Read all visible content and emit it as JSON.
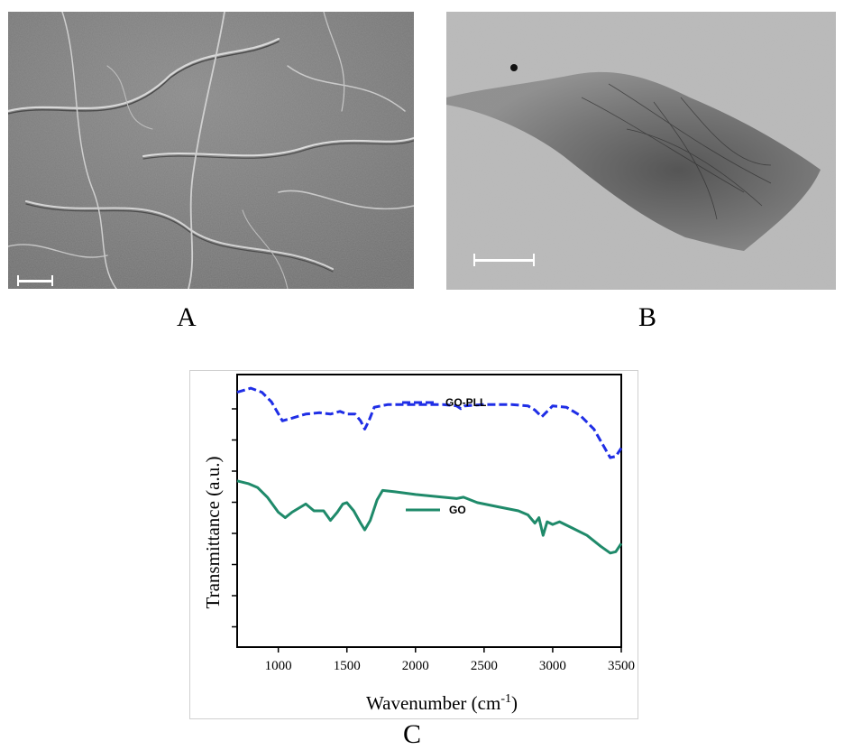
{
  "panels": {
    "a": {
      "letter": "A"
    },
    "b": {
      "letter": "B"
    },
    "c": {
      "letter": "C"
    }
  },
  "colors": {
    "go_pll": "#1f2ee6",
    "go": "#1f8a6a"
  },
  "chart_data": {
    "type": "line",
    "title": "",
    "xlabel_base": "Wavenumber (cm",
    "xlabel_sup": "-1",
    "xlabel_close": ")",
    "ylabel": "Transmittance (a.u.)",
    "xlim": [
      700,
      3500
    ],
    "ylim": [
      0,
      10
    ],
    "x_ticks": [
      1000,
      1500,
      2000,
      2500,
      3000,
      3500
    ],
    "y_tick_count": 8,
    "legend_placement": "inside, near each series",
    "series": [
      {
        "name": "GO-PLL",
        "style": "dashed",
        "points": [
          [
            700,
            9.35
          ],
          [
            800,
            9.5
          ],
          [
            880,
            9.35
          ],
          [
            950,
            9.0
          ],
          [
            1030,
            8.3
          ],
          [
            1100,
            8.4
          ],
          [
            1200,
            8.55
          ],
          [
            1300,
            8.6
          ],
          [
            1380,
            8.55
          ],
          [
            1450,
            8.65
          ],
          [
            1500,
            8.55
          ],
          [
            1560,
            8.55
          ],
          [
            1600,
            8.3
          ],
          [
            1630,
            8.0
          ],
          [
            1660,
            8.3
          ],
          [
            1700,
            8.8
          ],
          [
            1800,
            8.9
          ],
          [
            2000,
            8.9
          ],
          [
            2200,
            8.9
          ],
          [
            2300,
            8.85
          ],
          [
            2330,
            8.75
          ],
          [
            2360,
            8.85
          ],
          [
            2500,
            8.9
          ],
          [
            2700,
            8.9
          ],
          [
            2820,
            8.85
          ],
          [
            2870,
            8.7
          ],
          [
            2920,
            8.45
          ],
          [
            2950,
            8.6
          ],
          [
            3000,
            8.85
          ],
          [
            3100,
            8.8
          ],
          [
            3200,
            8.5
          ],
          [
            3300,
            8.0
          ],
          [
            3380,
            7.3
          ],
          [
            3420,
            6.95
          ],
          [
            3460,
            7.0
          ],
          [
            3500,
            7.3
          ]
        ]
      },
      {
        "name": "GO",
        "style": "solid",
        "points": [
          [
            700,
            6.1
          ],
          [
            780,
            6.0
          ],
          [
            850,
            5.85
          ],
          [
            920,
            5.5
          ],
          [
            1000,
            4.95
          ],
          [
            1050,
            4.75
          ],
          [
            1100,
            4.95
          ],
          [
            1200,
            5.25
          ],
          [
            1260,
            5.0
          ],
          [
            1330,
            5.0
          ],
          [
            1380,
            4.65
          ],
          [
            1430,
            4.95
          ],
          [
            1470,
            5.25
          ],
          [
            1500,
            5.3
          ],
          [
            1550,
            5.0
          ],
          [
            1600,
            4.55
          ],
          [
            1630,
            4.3
          ],
          [
            1670,
            4.65
          ],
          [
            1720,
            5.4
          ],
          [
            1760,
            5.75
          ],
          [
            1850,
            5.7
          ],
          [
            2000,
            5.6
          ],
          [
            2100,
            5.55
          ],
          [
            2200,
            5.5
          ],
          [
            2300,
            5.45
          ],
          [
            2350,
            5.5
          ],
          [
            2450,
            5.3
          ],
          [
            2600,
            5.15
          ],
          [
            2750,
            5.0
          ],
          [
            2820,
            4.85
          ],
          [
            2870,
            4.55
          ],
          [
            2900,
            4.75
          ],
          [
            2930,
            4.1
          ],
          [
            2960,
            4.6
          ],
          [
            3000,
            4.5
          ],
          [
            3050,
            4.6
          ],
          [
            3150,
            4.35
          ],
          [
            3250,
            4.1
          ],
          [
            3350,
            3.7
          ],
          [
            3420,
            3.45
          ],
          [
            3460,
            3.5
          ],
          [
            3500,
            3.8
          ]
        ]
      }
    ]
  }
}
